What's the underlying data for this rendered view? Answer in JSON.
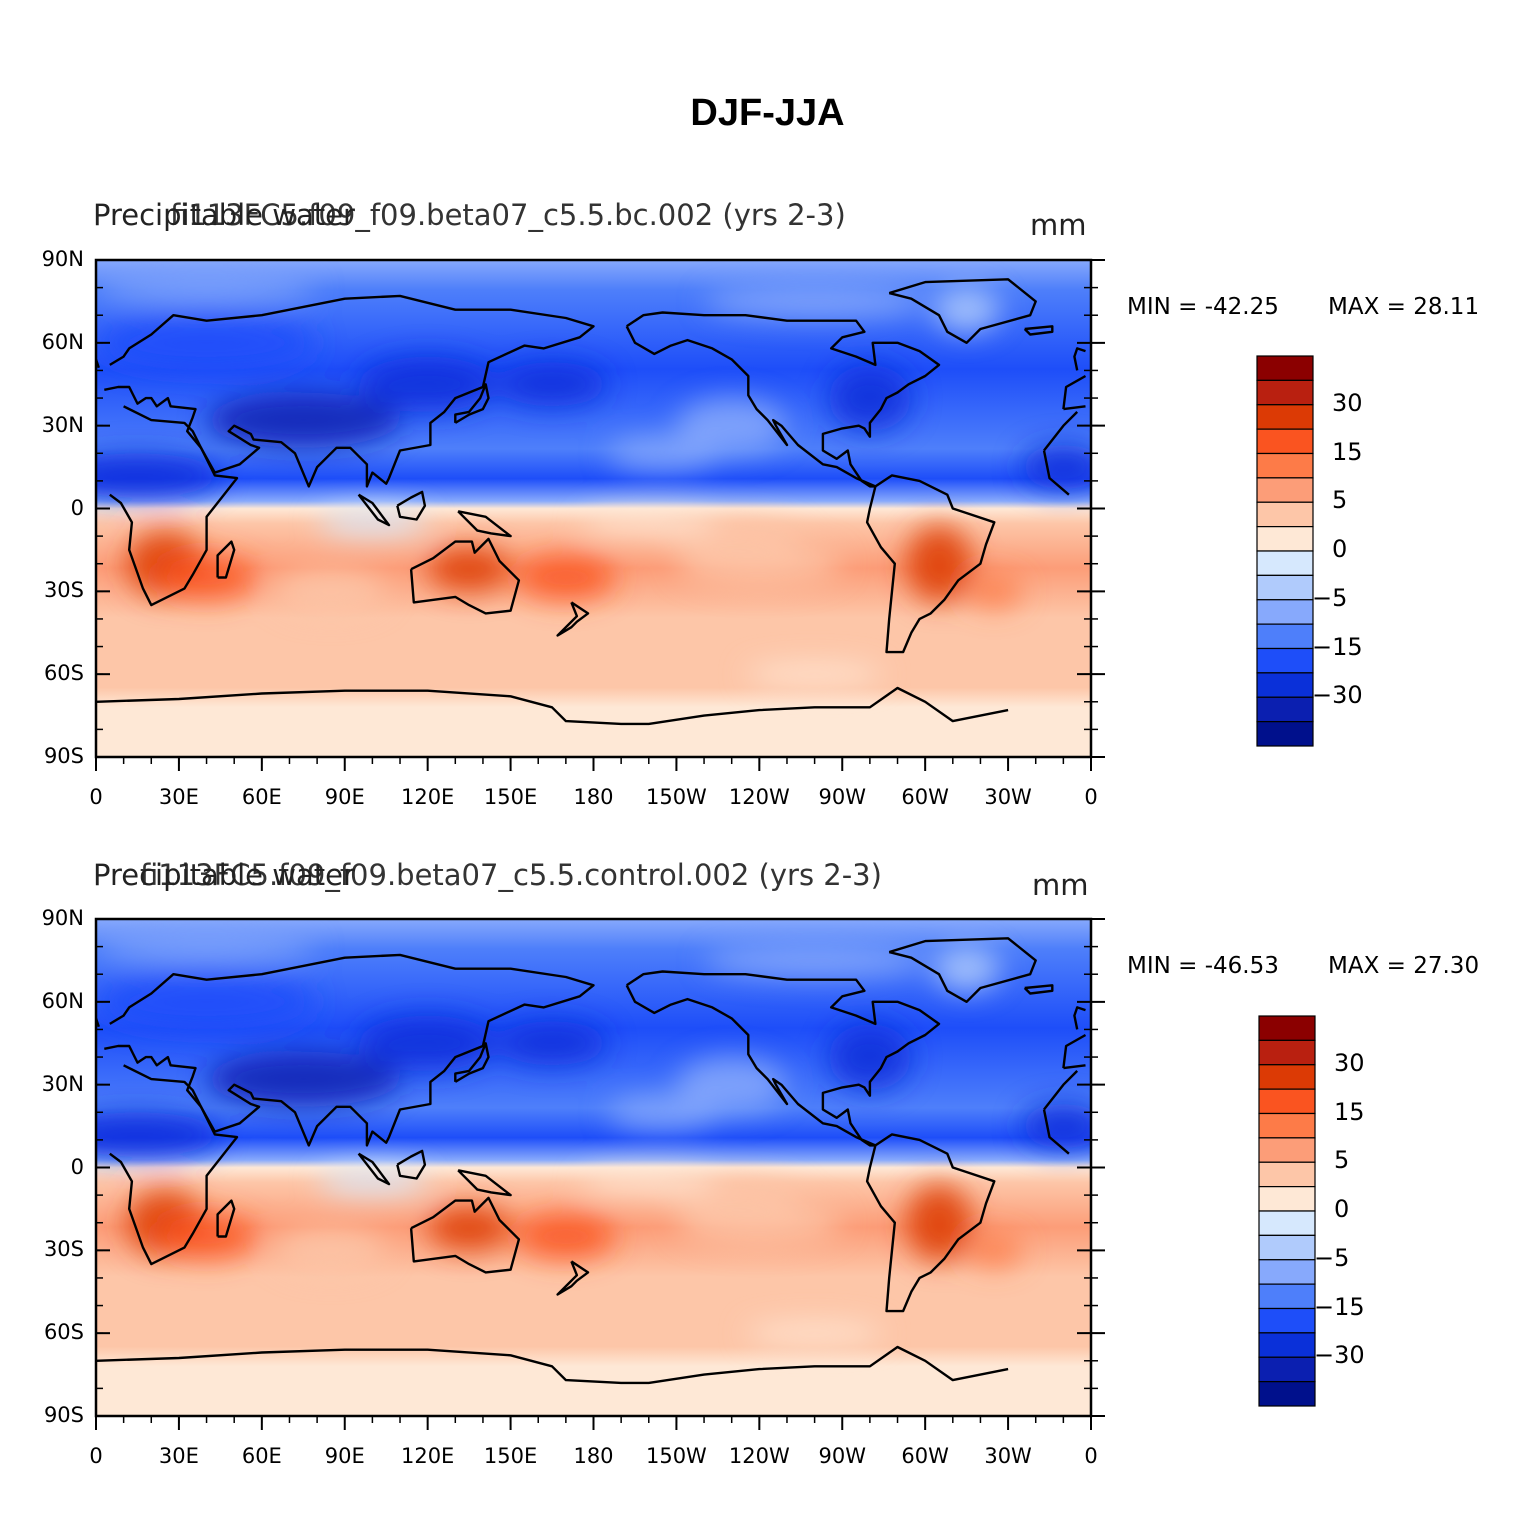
{
  "figure": {
    "title": "DJF-JJA",
    "units": "mm",
    "lat_ticks": [
      "90N",
      "60N",
      "30N",
      "0",
      "30S",
      "60S",
      "90S"
    ],
    "lon_ticks": [
      "0",
      "30E",
      "60E",
      "90E",
      "120E",
      "150E",
      "180",
      "150W",
      "120W",
      "90W",
      "60W",
      "30W",
      "0"
    ],
    "colorbar": {
      "colors": [
        "#8b0000",
        "#b92010",
        "#dc3a05",
        "#fa5420",
        "#fd7b48",
        "#fc9d78",
        "#fdc6a8",
        "#fee8d6",
        "#d6e8fd",
        "#b0cbfc",
        "#87a9fc",
        "#4e7ffa",
        "#1e4ef9",
        "#0a30d9",
        "#0b1fb0",
        "#00108c"
      ],
      "labels": [
        "30",
        "15",
        "5",
        "0",
        "-5",
        "-15",
        "-30"
      ]
    },
    "panels": [
      {
        "label_left": "Precipitable water",
        "label_center": "fi113FC5.f09_f09.beta07_c5.5.bc.002 (yrs 2-3)",
        "units": "mm",
        "min_text": "MIN = -42.25",
        "max_text": "MAX =   28.11"
      },
      {
        "label_left": "Precipitable water",
        "label_center": "fi113FC5.f09_f09.beta07_c5.5.control.002 (yrs 2-3)",
        "units": "mm",
        "min_text": "MIN = -46.53",
        "max_text": "MAX =   27.30"
      }
    ]
  }
}
